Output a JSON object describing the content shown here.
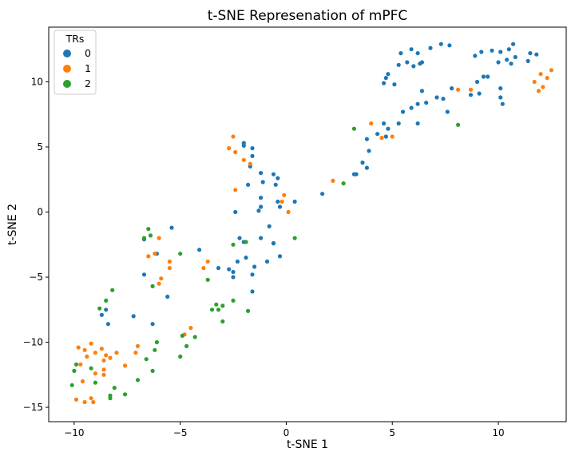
{
  "chart_data": {
    "type": "scatter",
    "title": "t-SNE Represenation of mPFC",
    "xlabel": "t-SNE 1",
    "ylabel": "t-SNE 2",
    "xlim": [
      -11.2,
      13.2
    ],
    "ylim": [
      -16.1,
      14.2
    ],
    "xticks": [
      -10,
      -5,
      0,
      5,
      10
    ],
    "yticks": [
      -15,
      -10,
      -5,
      0,
      5,
      10
    ],
    "grid": false,
    "legend": {
      "title": "TRs",
      "placement": "top-left"
    },
    "series": [
      {
        "name": "0",
        "color": "#1f77b4",
        "points": [
          [
            4.7,
            10.3
          ],
          [
            4.6,
            9.9
          ],
          [
            4.8,
            10.6
          ],
          [
            5.1,
            9.8
          ],
          [
            5.3,
            11.3
          ],
          [
            5.4,
            12.2
          ],
          [
            5.7,
            11.5
          ],
          [
            5.9,
            12.5
          ],
          [
            6.0,
            11.2
          ],
          [
            6.2,
            12.2
          ],
          [
            6.3,
            11.4
          ],
          [
            6.4,
            11.5
          ],
          [
            6.8,
            12.6
          ],
          [
            7.3,
            12.9
          ],
          [
            7.7,
            12.8
          ],
          [
            6.4,
            9.3
          ],
          [
            5.9,
            8.0
          ],
          [
            6.2,
            8.3
          ],
          [
            6.6,
            8.4
          ],
          [
            7.1,
            8.8
          ],
          [
            7.4,
            8.7
          ],
          [
            7.6,
            7.7
          ],
          [
            7.8,
            9.5
          ],
          [
            5.5,
            7.7
          ],
          [
            5.3,
            6.8
          ],
          [
            6.2,
            6.8
          ],
          [
            8.9,
            12.0
          ],
          [
            9.2,
            12.3
          ],
          [
            9.7,
            12.4
          ],
          [
            10.1,
            12.3
          ],
          [
            10.5,
            12.5
          ],
          [
            10.7,
            12.9
          ],
          [
            10.4,
            11.7
          ],
          [
            10.8,
            11.9
          ],
          [
            11.5,
            12.2
          ],
          [
            11.8,
            12.1
          ],
          [
            9.0,
            10.0
          ],
          [
            9.3,
            10.4
          ],
          [
            9.5,
            10.4
          ],
          [
            10.0,
            11.5
          ],
          [
            10.6,
            11.4
          ],
          [
            11.4,
            11.6
          ],
          [
            8.7,
            9.0
          ],
          [
            9.1,
            9.1
          ],
          [
            10.1,
            9.5
          ],
          [
            10.2,
            8.3
          ],
          [
            10.1,
            8.8
          ],
          [
            4.3,
            6.0
          ],
          [
            4.6,
            6.8
          ],
          [
            4.8,
            6.4
          ],
          [
            4.7,
            5.8
          ],
          [
            3.9,
            4.7
          ],
          [
            3.8,
            5.6
          ],
          [
            3.6,
            3.8
          ],
          [
            3.3,
            2.9
          ],
          [
            3.2,
            2.9
          ],
          [
            3.8,
            3.4
          ],
          [
            1.7,
            1.4
          ],
          [
            -1.6,
            4.9
          ],
          [
            -1.6,
            4.3
          ],
          [
            -2.0,
            5.3
          ],
          [
            -2.0,
            5.1
          ],
          [
            -1.7,
            3.5
          ],
          [
            -1.8,
            2.1
          ],
          [
            -1.2,
            3.0
          ],
          [
            -1.1,
            2.3
          ],
          [
            -0.6,
            2.9
          ],
          [
            -0.4,
            2.6
          ],
          [
            -0.5,
            2.1
          ],
          [
            -1.2,
            1.1
          ],
          [
            -1.2,
            0.4
          ],
          [
            -1.3,
            0.1
          ],
          [
            -0.4,
            0.8
          ],
          [
            0.4,
            0.8
          ],
          [
            -0.3,
            0.4
          ],
          [
            -0.8,
            -1.1
          ],
          [
            -1.2,
            -2.0
          ],
          [
            -0.6,
            -2.4
          ],
          [
            -0.6,
            -2.4
          ],
          [
            -2.2,
            -2.0
          ],
          [
            -2.0,
            -2.3
          ],
          [
            -2.4,
            0.0
          ],
          [
            -0.6,
            -2.4
          ],
          [
            -0.3,
            -3.4
          ],
          [
            -0.9,
            -3.8
          ],
          [
            -1.5,
            -4.2
          ],
          [
            -1.9,
            -3.5
          ],
          [
            -2.3,
            -3.8
          ],
          [
            -1.6,
            -4.8
          ],
          [
            -2.5,
            -4.6
          ],
          [
            -2.7,
            -4.4
          ],
          [
            -2.5,
            -5.0
          ],
          [
            -1.6,
            -6.1
          ],
          [
            -3.2,
            -4.3
          ],
          [
            -4.1,
            -2.9
          ],
          [
            -5.4,
            -1.2
          ],
          [
            -5.6,
            -6.5
          ],
          [
            -6.1,
            -3.2
          ],
          [
            -6.7,
            -4.8
          ],
          [
            -6.7,
            -2.1
          ],
          [
            -6.3,
            -8.6
          ],
          [
            -7.2,
            -8.0
          ],
          [
            -8.4,
            -8.6
          ],
          [
            -8.5,
            -7.5
          ],
          [
            -8.7,
            -7.9
          ]
        ]
      },
      {
        "name": "1",
        "color": "#ff7f0e",
        "points": [
          [
            -2.5,
            5.8
          ],
          [
            -2.7,
            4.9
          ],
          [
            -2.4,
            4.6
          ],
          [
            -2.0,
            4.0
          ],
          [
            -1.7,
            3.7
          ],
          [
            -2.4,
            1.7
          ],
          [
            -0.1,
            1.3
          ],
          [
            -0.2,
            0.8
          ],
          [
            0.1,
            0.0
          ],
          [
            2.2,
            2.4
          ],
          [
            4.0,
            6.8
          ],
          [
            4.5,
            5.7
          ],
          [
            5.0,
            5.8
          ],
          [
            8.1,
            9.4
          ],
          [
            8.7,
            9.4
          ],
          [
            11.7,
            10.0
          ],
          [
            11.9,
            9.3
          ],
          [
            12.1,
            9.6
          ],
          [
            12.3,
            10.3
          ],
          [
            12.5,
            10.9
          ],
          [
            12.0,
            10.6
          ],
          [
            -6.0,
            -2.0
          ],
          [
            -6.5,
            -3.4
          ],
          [
            -6.2,
            -3.2
          ],
          [
            -5.5,
            -3.8
          ],
          [
            -5.5,
            -4.3
          ],
          [
            -5.9,
            -5.1
          ],
          [
            -6.0,
            -5.5
          ],
          [
            -3.7,
            -3.8
          ],
          [
            -3.9,
            -4.3
          ],
          [
            -4.5,
            -8.9
          ],
          [
            -4.8,
            -9.4
          ],
          [
            -7.0,
            -10.3
          ],
          [
            -7.1,
            -10.8
          ],
          [
            -7.6,
            -11.8
          ],
          [
            -8.0,
            -10.8
          ],
          [
            -8.3,
            -11.2
          ],
          [
            -8.7,
            -10.5
          ],
          [
            -8.5,
            -11.0
          ],
          [
            -8.6,
            -11.4
          ],
          [
            -9.0,
            -10.8
          ],
          [
            -9.2,
            -10.1
          ],
          [
            -9.5,
            -10.6
          ],
          [
            -9.8,
            -10.4
          ],
          [
            -9.4,
            -11.1
          ],
          [
            -9.7,
            -11.7
          ],
          [
            -8.6,
            -12.1
          ],
          [
            -8.6,
            -12.5
          ],
          [
            -9.0,
            -12.4
          ],
          [
            -9.6,
            -13.0
          ],
          [
            -9.9,
            -14.4
          ],
          [
            -9.5,
            -14.6
          ],
          [
            -9.2,
            -14.3
          ],
          [
            -9.1,
            -14.6
          ]
        ]
      },
      {
        "name": "2",
        "color": "#2ca02c",
        "points": [
          [
            3.2,
            6.4
          ],
          [
            2.7,
            2.2
          ],
          [
            0.4,
            -2.0
          ],
          [
            8.1,
            6.7
          ],
          [
            -1.9,
            -2.3
          ],
          [
            -2.5,
            -2.5
          ],
          [
            -6.5,
            -1.3
          ],
          [
            -6.4,
            -1.8
          ],
          [
            -6.7,
            -2.0
          ],
          [
            -5.0,
            -3.2
          ],
          [
            -6.3,
            -5.7
          ],
          [
            -3.7,
            -5.2
          ],
          [
            -3.3,
            -7.1
          ],
          [
            -3.5,
            -7.5
          ],
          [
            -3.0,
            -7.2
          ],
          [
            -3.2,
            -7.5
          ],
          [
            -2.5,
            -6.8
          ],
          [
            -1.8,
            -7.6
          ],
          [
            -3.0,
            -8.4
          ],
          [
            -4.9,
            -9.5
          ],
          [
            -4.3,
            -9.6
          ],
          [
            -4.7,
            -10.3
          ],
          [
            -5.0,
            -11.1
          ],
          [
            -6.1,
            -10.0
          ],
          [
            -6.2,
            -10.6
          ],
          [
            -6.6,
            -11.3
          ],
          [
            -6.3,
            -12.2
          ],
          [
            -7.0,
            -12.9
          ],
          [
            -8.2,
            -6.0
          ],
          [
            -8.5,
            -6.8
          ],
          [
            -8.8,
            -7.4
          ],
          [
            -9.2,
            -12.0
          ],
          [
            -9.0,
            -13.1
          ],
          [
            -9.9,
            -11.7
          ],
          [
            -10.0,
            -12.2
          ],
          [
            -10.1,
            -13.3
          ],
          [
            -8.1,
            -13.5
          ],
          [
            -8.3,
            -14.1
          ],
          [
            -8.3,
            -14.3
          ],
          [
            -7.6,
            -14.0
          ]
        ]
      }
    ]
  }
}
